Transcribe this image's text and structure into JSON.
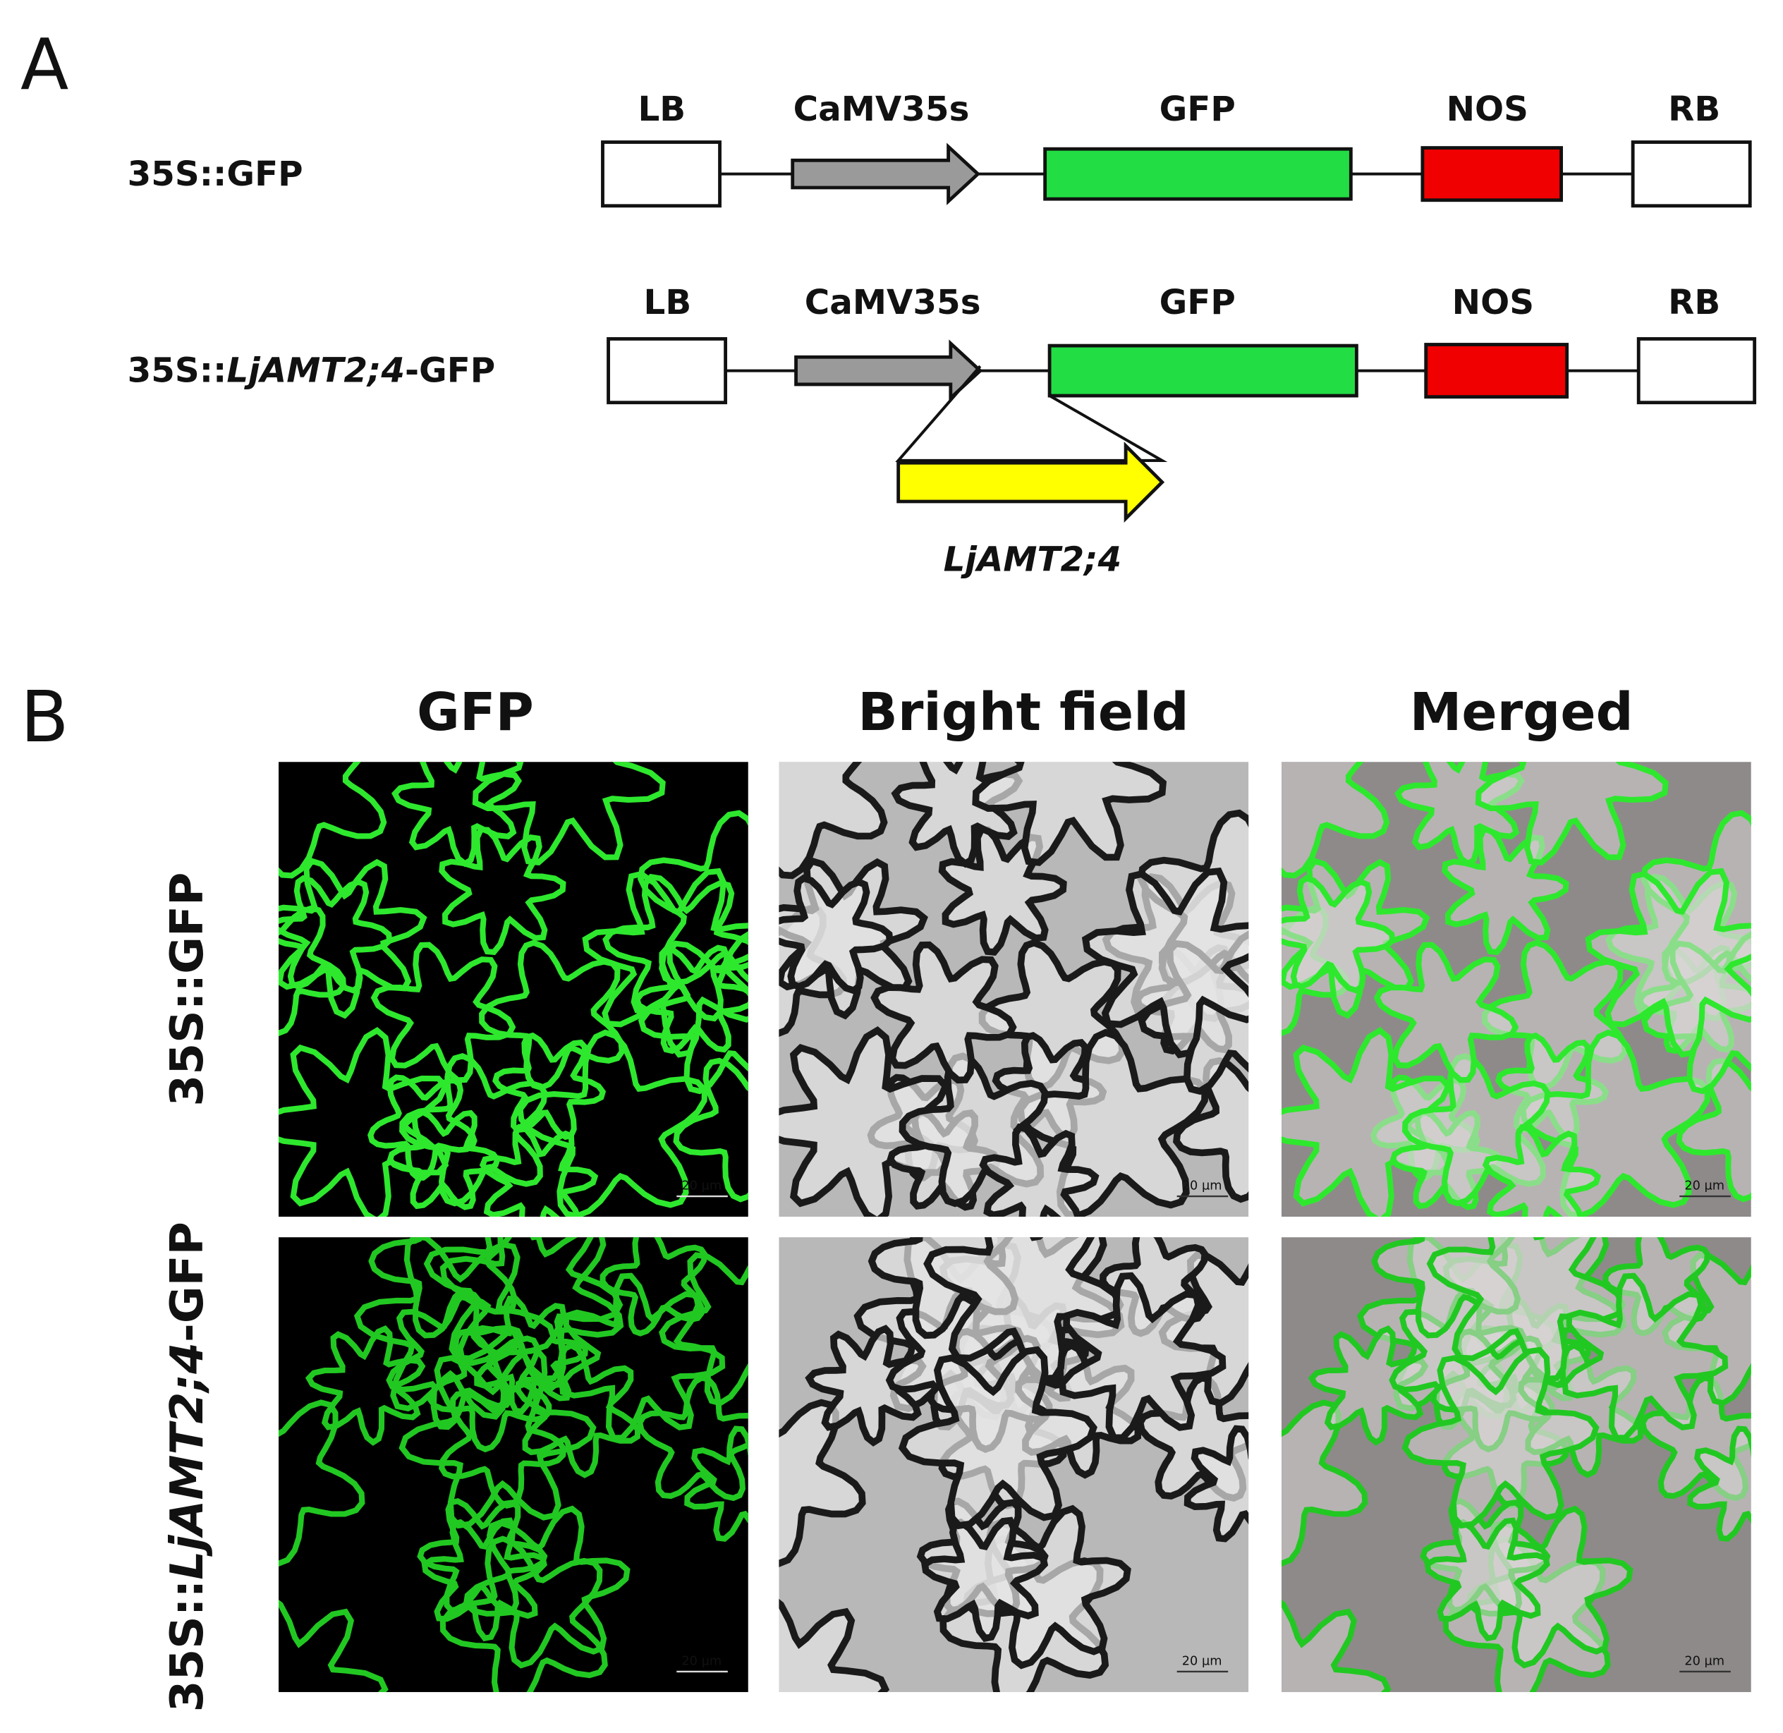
{
  "panel_a": {
    "label": "A",
    "constructs": [
      {
        "name_parts": [
          "35S::GFP"
        ],
        "elements": [
          "LB",
          "CaMV35s",
          "GFP",
          "NOS",
          "RB"
        ]
      },
      {
        "name_parts": [
          "35S::",
          "LjAMT2;4",
          "-GFP"
        ],
        "elements": [
          "LB",
          "CaMV35s",
          "GFP",
          "NOS",
          "RB"
        ],
        "insert": "LjAMT2;4"
      }
    ]
  },
  "panel_b": {
    "label": "B",
    "columns": [
      "GFP",
      "Bright field",
      "Merged"
    ],
    "rows": [
      [
        "35S::GFP"
      ],
      [
        "35S::",
        "LjAMT2;4",
        "-GFP"
      ]
    ],
    "scale_bar": "20 µm"
  }
}
